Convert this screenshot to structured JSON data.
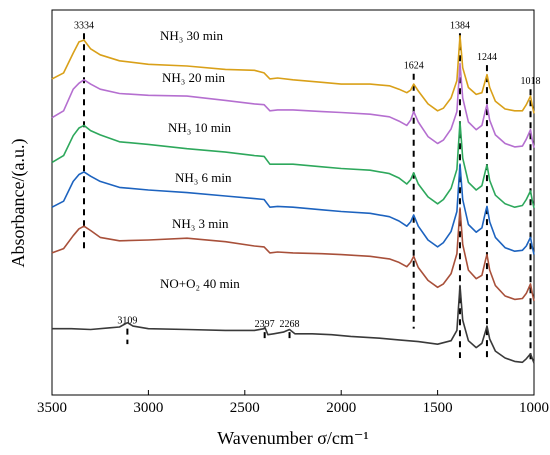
{
  "chart_data": {
    "type": "line",
    "xlabel": "Wavenumber σ/cm⁻¹",
    "ylabel": "Absorbance/(a.u.)",
    "xlim": [
      3500,
      1000
    ],
    "x_reversed": true,
    "x_ticks": [
      "3500",
      "3000",
      "2500",
      "2000",
      "1500",
      "1000"
    ],
    "y_ticks_shown": false,
    "grid": false,
    "legend": "none",
    "series": [
      {
        "name": "NH₃ 30 min",
        "color": "#d9a019",
        "points": [
          [
            3500,
            2.92
          ],
          [
            3440,
            2.99
          ],
          [
            3390,
            3.22
          ],
          [
            3360,
            3.35
          ],
          [
            3334,
            3.37
          ],
          [
            3300,
            3.27
          ],
          [
            3250,
            3.2
          ],
          [
            3150,
            3.13
          ],
          [
            3000,
            3.09
          ],
          [
            2800,
            3.07
          ],
          [
            2600,
            3.03
          ],
          [
            2450,
            3.02
          ],
          [
            2400,
            2.99
          ],
          [
            2370,
            2.92
          ],
          [
            2330,
            2.93
          ],
          [
            2250,
            2.91
          ],
          [
            2100,
            2.88
          ],
          [
            2000,
            2.86
          ],
          [
            1850,
            2.86
          ],
          [
            1750,
            2.84
          ],
          [
            1700,
            2.8
          ],
          [
            1660,
            2.76
          ],
          [
            1640,
            2.79
          ],
          [
            1624,
            2.86
          ],
          [
            1600,
            2.78
          ],
          [
            1550,
            2.63
          ],
          [
            1500,
            2.55
          ],
          [
            1470,
            2.58
          ],
          [
            1430,
            2.7
          ],
          [
            1400,
            2.9
          ],
          [
            1384,
            3.42
          ],
          [
            1370,
            3.05
          ],
          [
            1340,
            2.82
          ],
          [
            1300,
            2.74
          ],
          [
            1270,
            2.76
          ],
          [
            1250,
            2.92
          ],
          [
            1244,
            2.97
          ],
          [
            1230,
            2.82
          ],
          [
            1200,
            2.66
          ],
          [
            1150,
            2.57
          ],
          [
            1100,
            2.55
          ],
          [
            1060,
            2.55
          ],
          [
            1040,
            2.62
          ],
          [
            1018,
            2.72
          ],
          [
            1010,
            2.62
          ],
          [
            1000,
            2.52
          ]
        ]
      },
      {
        "name": "NH₃ 20 min",
        "color": "#b56fd0",
        "points": [
          [
            3500,
            2.47
          ],
          [
            3440,
            2.55
          ],
          [
            3390,
            2.8
          ],
          [
            3360,
            2.87
          ],
          [
            3334,
            2.91
          ],
          [
            3300,
            2.86
          ],
          [
            3250,
            2.8
          ],
          [
            3150,
            2.75
          ],
          [
            3000,
            2.73
          ],
          [
            2800,
            2.72
          ],
          [
            2600,
            2.67
          ],
          [
            2450,
            2.63
          ],
          [
            2400,
            2.62
          ],
          [
            2370,
            2.55
          ],
          [
            2330,
            2.56
          ],
          [
            2250,
            2.56
          ],
          [
            2100,
            2.54
          ],
          [
            2000,
            2.53
          ],
          [
            1850,
            2.51
          ],
          [
            1750,
            2.48
          ],
          [
            1700,
            2.43
          ],
          [
            1660,
            2.38
          ],
          [
            1640,
            2.44
          ],
          [
            1624,
            2.54
          ],
          [
            1600,
            2.42
          ],
          [
            1550,
            2.25
          ],
          [
            1500,
            2.17
          ],
          [
            1470,
            2.21
          ],
          [
            1430,
            2.34
          ],
          [
            1400,
            2.54
          ],
          [
            1384,
            3.1
          ],
          [
            1370,
            2.7
          ],
          [
            1340,
            2.42
          ],
          [
            1300,
            2.33
          ],
          [
            1270,
            2.38
          ],
          [
            1250,
            2.57
          ],
          [
            1244,
            2.62
          ],
          [
            1230,
            2.44
          ],
          [
            1200,
            2.27
          ],
          [
            1150,
            2.17
          ],
          [
            1100,
            2.13
          ],
          [
            1060,
            2.14
          ],
          [
            1040,
            2.22
          ],
          [
            1018,
            2.33
          ],
          [
            1010,
            2.22
          ],
          [
            1000,
            2.12
          ]
        ]
      },
      {
        "name": "NH₃ 10 min",
        "color": "#2ea85c",
        "points": [
          [
            3500,
            1.95
          ],
          [
            3440,
            2.03
          ],
          [
            3390,
            2.26
          ],
          [
            3360,
            2.35
          ],
          [
            3334,
            2.38
          ],
          [
            3300,
            2.32
          ],
          [
            3250,
            2.27
          ],
          [
            3150,
            2.19
          ],
          [
            3000,
            2.16
          ],
          [
            2800,
            2.11
          ],
          [
            2600,
            2.07
          ],
          [
            2450,
            2.03
          ],
          [
            2400,
            2.02
          ],
          [
            2370,
            1.93
          ],
          [
            2330,
            1.93
          ],
          [
            2250,
            1.93
          ],
          [
            2100,
            1.9
          ],
          [
            2000,
            1.88
          ],
          [
            1850,
            1.86
          ],
          [
            1750,
            1.82
          ],
          [
            1700,
            1.77
          ],
          [
            1660,
            1.7
          ],
          [
            1640,
            1.75
          ],
          [
            1624,
            1.83
          ],
          [
            1600,
            1.7
          ],
          [
            1550,
            1.55
          ],
          [
            1500,
            1.47
          ],
          [
            1470,
            1.52
          ],
          [
            1430,
            1.65
          ],
          [
            1400,
            1.87
          ],
          [
            1384,
            2.42
          ],
          [
            1370,
            2.0
          ],
          [
            1340,
            1.72
          ],
          [
            1300,
            1.63
          ],
          [
            1270,
            1.68
          ],
          [
            1250,
            1.87
          ],
          [
            1244,
            1.92
          ],
          [
            1230,
            1.74
          ],
          [
            1200,
            1.57
          ],
          [
            1150,
            1.47
          ],
          [
            1100,
            1.43
          ],
          [
            1060,
            1.45
          ],
          [
            1040,
            1.52
          ],
          [
            1018,
            1.62
          ],
          [
            1010,
            1.52
          ],
          [
            1000,
            1.42
          ]
        ]
      },
      {
        "name": "NH₃ 6 min",
        "color": "#1d63bf",
        "points": [
          [
            3500,
            1.43
          ],
          [
            3440,
            1.5
          ],
          [
            3390,
            1.73
          ],
          [
            3360,
            1.81
          ],
          [
            3334,
            1.84
          ],
          [
            3300,
            1.79
          ],
          [
            3250,
            1.73
          ],
          [
            3150,
            1.66
          ],
          [
            3000,
            1.63
          ],
          [
            2800,
            1.6
          ],
          [
            2600,
            1.56
          ],
          [
            2450,
            1.53
          ],
          [
            2400,
            1.52
          ],
          [
            2370,
            1.43
          ],
          [
            2330,
            1.44
          ],
          [
            2250,
            1.43
          ],
          [
            2100,
            1.4
          ],
          [
            2000,
            1.38
          ],
          [
            1850,
            1.36
          ],
          [
            1750,
            1.32
          ],
          [
            1700,
            1.27
          ],
          [
            1660,
            1.21
          ],
          [
            1640,
            1.26
          ],
          [
            1624,
            1.34
          ],
          [
            1600,
            1.21
          ],
          [
            1550,
            1.05
          ],
          [
            1500,
            0.97
          ],
          [
            1470,
            1.02
          ],
          [
            1430,
            1.15
          ],
          [
            1400,
            1.38
          ],
          [
            1384,
            1.93
          ],
          [
            1370,
            1.52
          ],
          [
            1340,
            1.23
          ],
          [
            1300,
            1.14
          ],
          [
            1270,
            1.19
          ],
          [
            1250,
            1.39
          ],
          [
            1244,
            1.44
          ],
          [
            1230,
            1.26
          ],
          [
            1200,
            1.08
          ],
          [
            1150,
            0.96
          ],
          [
            1100,
            0.92
          ],
          [
            1060,
            0.93
          ],
          [
            1040,
            0.98
          ],
          [
            1018,
            1.08
          ],
          [
            1010,
            0.98
          ],
          [
            1000,
            0.88
          ]
        ]
      },
      {
        "name": "NH₃ 3 min",
        "color": "#a8503a",
        "points": [
          [
            3500,
            0.9
          ],
          [
            3440,
            0.95
          ],
          [
            3390,
            1.1
          ],
          [
            3360,
            1.18
          ],
          [
            3334,
            1.21
          ],
          [
            3300,
            1.16
          ],
          [
            3250,
            1.08
          ],
          [
            3150,
            1.04
          ],
          [
            3000,
            1.05
          ],
          [
            2800,
            1.07
          ],
          [
            2600,
            1.03
          ],
          [
            2450,
            0.98
          ],
          [
            2400,
            0.97
          ],
          [
            2370,
            0.9
          ],
          [
            2330,
            0.91
          ],
          [
            2250,
            0.9
          ],
          [
            2100,
            0.89
          ],
          [
            2000,
            0.88
          ],
          [
            1850,
            0.86
          ],
          [
            1750,
            0.83
          ],
          [
            1700,
            0.79
          ],
          [
            1660,
            0.74
          ],
          [
            1640,
            0.79
          ],
          [
            1624,
            0.86
          ],
          [
            1600,
            0.73
          ],
          [
            1550,
            0.58
          ],
          [
            1500,
            0.5
          ],
          [
            1470,
            0.54
          ],
          [
            1430,
            0.66
          ],
          [
            1400,
            0.89
          ],
          [
            1384,
            1.42
          ],
          [
            1370,
            1.0
          ],
          [
            1340,
            0.7
          ],
          [
            1300,
            0.6
          ],
          [
            1270,
            0.64
          ],
          [
            1250,
            0.83
          ],
          [
            1244,
            0.88
          ],
          [
            1230,
            0.7
          ],
          [
            1200,
            0.52
          ],
          [
            1150,
            0.4
          ],
          [
            1100,
            0.36
          ],
          [
            1060,
            0.37
          ],
          [
            1040,
            0.43
          ],
          [
            1018,
            0.54
          ],
          [
            1010,
            0.44
          ],
          [
            1000,
            0.34
          ]
        ]
      },
      {
        "name": "NO+O₂ 40 min",
        "color": "#3a3a3a",
        "points": [
          [
            3500,
            0.02
          ],
          [
            3400,
            0.02
          ],
          [
            3300,
            0.01
          ],
          [
            3200,
            0.03
          ],
          [
            3150,
            0.04
          ],
          [
            3109,
            0.09
          ],
          [
            3080,
            0.05
          ],
          [
            3000,
            0.02
          ],
          [
            2800,
            0.01
          ],
          [
            2600,
            0.0
          ],
          [
            2450,
            0.0
          ],
          [
            2400,
            0.02
          ],
          [
            2397,
            0.04
          ],
          [
            2380,
            -0.05
          ],
          [
            2350,
            -0.04
          ],
          [
            2300,
            -0.02
          ],
          [
            2268,
            0.01
          ],
          [
            2240,
            -0.04
          ],
          [
            2150,
            -0.04
          ],
          [
            2050,
            -0.05
          ],
          [
            1950,
            -0.07
          ],
          [
            1800,
            -0.09
          ],
          [
            1700,
            -0.11
          ],
          [
            1600,
            -0.13
          ],
          [
            1500,
            -0.16
          ],
          [
            1430,
            -0.12
          ],
          [
            1400,
            0.0
          ],
          [
            1384,
            0.52
          ],
          [
            1370,
            0.12
          ],
          [
            1340,
            -0.12
          ],
          [
            1300,
            -0.2
          ],
          [
            1270,
            -0.15
          ],
          [
            1250,
            0.0
          ],
          [
            1244,
            0.05
          ],
          [
            1230,
            -0.1
          ],
          [
            1200,
            -0.24
          ],
          [
            1150,
            -0.32
          ],
          [
            1100,
            -0.36
          ],
          [
            1060,
            -0.37
          ],
          [
            1040,
            -0.33
          ],
          [
            1018,
            -0.27
          ],
          [
            1010,
            -0.32
          ],
          [
            1000,
            -0.38
          ]
        ]
      }
    ],
    "peak_markers": [
      {
        "x": 3334,
        "label": "3334",
        "y_from": 0.92,
        "y_to": 3.45
      },
      {
        "x": 1624,
        "label": "1624",
        "y_from": 0.02,
        "y_to": 2.98
      },
      {
        "x": 1384,
        "label": "1384",
        "y_from": -0.32,
        "y_to": 3.45
      },
      {
        "x": 1244,
        "label": "1244",
        "y_from": -0.36,
        "y_to": 3.08
      },
      {
        "x": 1018,
        "label": "1018",
        "y_from": -0.36,
        "y_to": 2.8
      },
      {
        "x": 3109,
        "label": "3109",
        "y_from": -0.16,
        "y_to": 0.02
      },
      {
        "x": 2397,
        "label": "2397",
        "y_from": -0.12,
        "y_to": -0.02
      },
      {
        "x": 2268,
        "label": "2268",
        "y_from": -0.12,
        "y_to": -0.02
      }
    ]
  }
}
